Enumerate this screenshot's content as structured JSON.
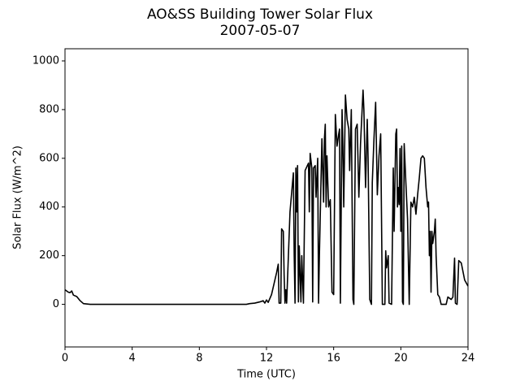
{
  "chart_data": {
    "type": "line",
    "title": "AO&SS Building Tower Solar Flux",
    "subtitle": "2007-05-07",
    "xlabel": "Time (UTC)",
    "ylabel": "Solar Flux (W/m^2)",
    "xlim": [
      0,
      24
    ],
    "xticks": [
      0,
      4,
      8,
      12,
      16,
      20,
      24
    ],
    "ylim": [
      -175,
      1050
    ],
    "yticks": [
      0,
      200,
      400,
      600,
      800,
      1000
    ],
    "color": "#000000",
    "x": [
      0,
      0.2,
      0.3,
      0.4,
      0.5,
      0.7,
      0.9,
      1.1,
      1.5,
      10.8,
      11,
      11.3,
      11.6,
      11.8,
      11.9,
      12,
      12.1,
      12.3,
      12.6,
      12.7,
      12.75,
      12.85,
      12.9,
      13.0,
      13.05,
      13.1,
      13.15,
      13.2,
      13.4,
      13.6,
      13.65,
      13.7,
      13.75,
      13.8,
      13.85,
      13.9,
      13.95,
      14.05,
      14.1,
      14.2,
      14.3,
      14.5,
      14.55,
      14.6,
      14.7,
      14.75,
      14.8,
      14.9,
      14.95,
      15.05,
      15.1,
      15.15,
      15.3,
      15.4,
      15.45,
      15.5,
      15.55,
      15.6,
      15.7,
      15.8,
      15.9,
      16.0,
      16.1,
      16.2,
      16.3,
      16.35,
      16.4,
      16.5,
      16.55,
      16.6,
      16.7,
      16.8,
      16.9,
      16.95,
      17.05,
      17.15,
      17.2,
      17.3,
      17.4,
      17.5,
      17.6,
      17.75,
      17.8,
      17.9,
      18.0,
      18.05,
      18.15,
      18.25,
      18.3,
      18.4,
      18.5,
      18.6,
      18.7,
      18.8,
      18.9,
      19.05,
      19.1,
      19.15,
      19.25,
      19.3,
      19.45,
      19.55,
      19.6,
      19.7,
      19.75,
      19.8,
      19.85,
      19.9,
      19.95,
      20.0,
      20.05,
      20.1,
      20.15,
      20.2,
      20.3,
      20.4,
      20.5,
      20.6,
      20.7,
      20.8,
      20.9,
      21.0,
      21.1,
      21.2,
      21.3,
      21.4,
      21.5,
      21.6,
      21.65,
      21.7,
      21.75,
      21.8,
      21.85,
      21.9,
      22.0,
      22.05,
      22.1,
      22.2,
      22.3,
      22.4,
      22.7,
      22.8,
      22.9,
      23.0,
      23.1,
      23.2,
      23.25,
      23.35,
      23.45,
      23.6,
      23.8,
      24
    ],
    "values": [
      60,
      50,
      48,
      55,
      38,
      32,
      15,
      3,
      0,
      0,
      3,
      5,
      10,
      15,
      5,
      18,
      8,
      40,
      130,
      165,
      5,
      5,
      310,
      300,
      120,
      5,
      60,
      5,
      380,
      540,
      200,
      5,
      560,
      380,
      570,
      10,
      240,
      10,
      200,
      5,
      550,
      580,
      380,
      620,
      560,
      10,
      560,
      570,
      440,
      600,
      5,
      200,
      680,
      420,
      680,
      740,
      400,
      610,
      400,
      430,
      50,
      40,
      780,
      650,
      700,
      720,
      5,
      800,
      650,
      400,
      860,
      760,
      720,
      550,
      800,
      20,
      0,
      720,
      740,
      440,
      660,
      880,
      800,
      480,
      760,
      600,
      20,
      0,
      500,
      680,
      830,
      450,
      610,
      700,
      0,
      0,
      220,
      150,
      200,
      5,
      0,
      560,
      300,
      700,
      720,
      400,
      480,
      410,
      640,
      300,
      650,
      10,
      0,
      660,
      500,
      350,
      0,
      420,
      400,
      440,
      370,
      450,
      520,
      600,
      610,
      600,
      480,
      400,
      420,
      200,
      300,
      50,
      300,
      250,
      300,
      350,
      200,
      40,
      30,
      0,
      0,
      30,
      25,
      20,
      30,
      190,
      5,
      0,
      180,
      170,
      100,
      75
    ]
  }
}
